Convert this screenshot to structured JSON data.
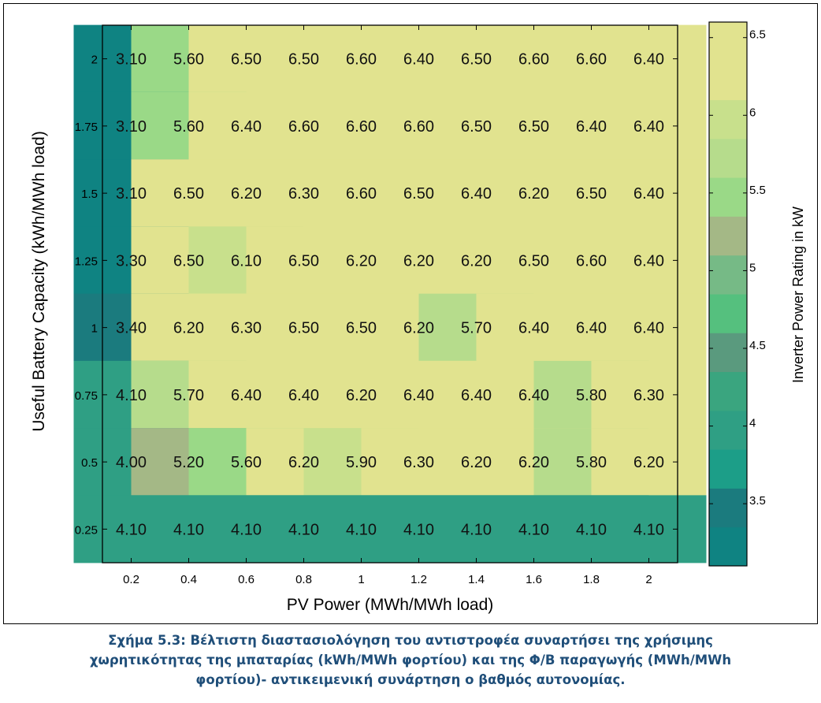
{
  "chart_data": {
    "type": "heatmap",
    "xlabel": "PV Power (MWh/MWh load)",
    "ylabel": "Useful Battery Capacity (kWh/MWh load)",
    "x_categories": [
      "0.2",
      "0.4",
      "0.6",
      "0.8",
      "1",
      "1.2",
      "1.4",
      "1.6",
      "1.8",
      "2"
    ],
    "y_categories": [
      "2",
      "1.75",
      "1.5",
      "1.25",
      "1",
      "0.75",
      "0.5",
      "0.25"
    ],
    "values": [
      [
        3.1,
        5.6,
        6.5,
        6.5,
        6.6,
        6.4,
        6.5,
        6.6,
        6.6,
        6.4
      ],
      [
        3.1,
        5.6,
        6.4,
        6.6,
        6.6,
        6.6,
        6.5,
        6.5,
        6.4,
        6.4
      ],
      [
        3.1,
        6.5,
        6.2,
        6.3,
        6.6,
        6.5,
        6.4,
        6.2,
        6.5,
        6.4
      ],
      [
        3.3,
        6.5,
        6.1,
        6.5,
        6.2,
        6.2,
        6.2,
        6.5,
        6.6,
        6.4
      ],
      [
        3.4,
        6.2,
        6.3,
        6.5,
        6.5,
        6.2,
        5.7,
        6.4,
        6.4,
        6.4
      ],
      [
        4.1,
        5.7,
        6.4,
        6.4,
        6.2,
        6.4,
        6.4,
        6.4,
        5.8,
        6.3
      ],
      [
        4.0,
        5.2,
        5.6,
        6.2,
        5.9,
        6.3,
        6.2,
        6.2,
        5.8,
        6.2
      ],
      [
        4.1,
        4.1,
        4.1,
        4.1,
        4.1,
        4.1,
        4.1,
        4.1,
        4.1,
        4.1
      ]
    ],
    "colorbar": {
      "label": "Inverter Power Rating in kW",
      "range": [
        3.1,
        6.6
      ],
      "ticks": [
        "3.5",
        "4",
        "4.5",
        "5",
        "5.5",
        "6",
        "6.5"
      ],
      "levels": [
        {
          "from": 3.1,
          "to": 3.35,
          "color": "#0f8382"
        },
        {
          "from": 3.35,
          "to": 3.6,
          "color": "#1b7b7e"
        },
        {
          "from": 3.6,
          "to": 3.85,
          "color": "#1c9e88"
        },
        {
          "from": 3.85,
          "to": 4.1,
          "color": "#2f9f84"
        },
        {
          "from": 4.1,
          "to": 4.35,
          "color": "#3aa57f"
        },
        {
          "from": 4.35,
          "to": 4.6,
          "color": "#5a9a7e"
        },
        {
          "from": 4.6,
          "to": 4.85,
          "color": "#55c07e"
        },
        {
          "from": 4.85,
          "to": 5.1,
          "color": "#76ba86"
        },
        {
          "from": 5.1,
          "to": 5.35,
          "color": "#a4b886"
        },
        {
          "from": 5.35,
          "to": 5.6,
          "color": "#9ad987"
        },
        {
          "from": 5.6,
          "to": 5.85,
          "color": "#b6dc8c"
        },
        {
          "from": 5.85,
          "to": 6.1,
          "color": "#c8e08c"
        },
        {
          "from": 6.1,
          "to": 6.6,
          "color": "#e1e38f"
        }
      ]
    }
  },
  "caption": {
    "lines": [
      "Σχήμα 5.3: Βέλτιστη διαστασιολόγηση του αντιστροφέα συναρτήσει της χρήσιμης",
      "χωρητικότητας της μπαταρίας (kWh/MWh φορτίου) και της Φ/Β παραγωγής (MWh/MWh",
      "φορτίου)- αντικειμενική συνάρτηση ο βαθμός αυτονομίας."
    ]
  }
}
